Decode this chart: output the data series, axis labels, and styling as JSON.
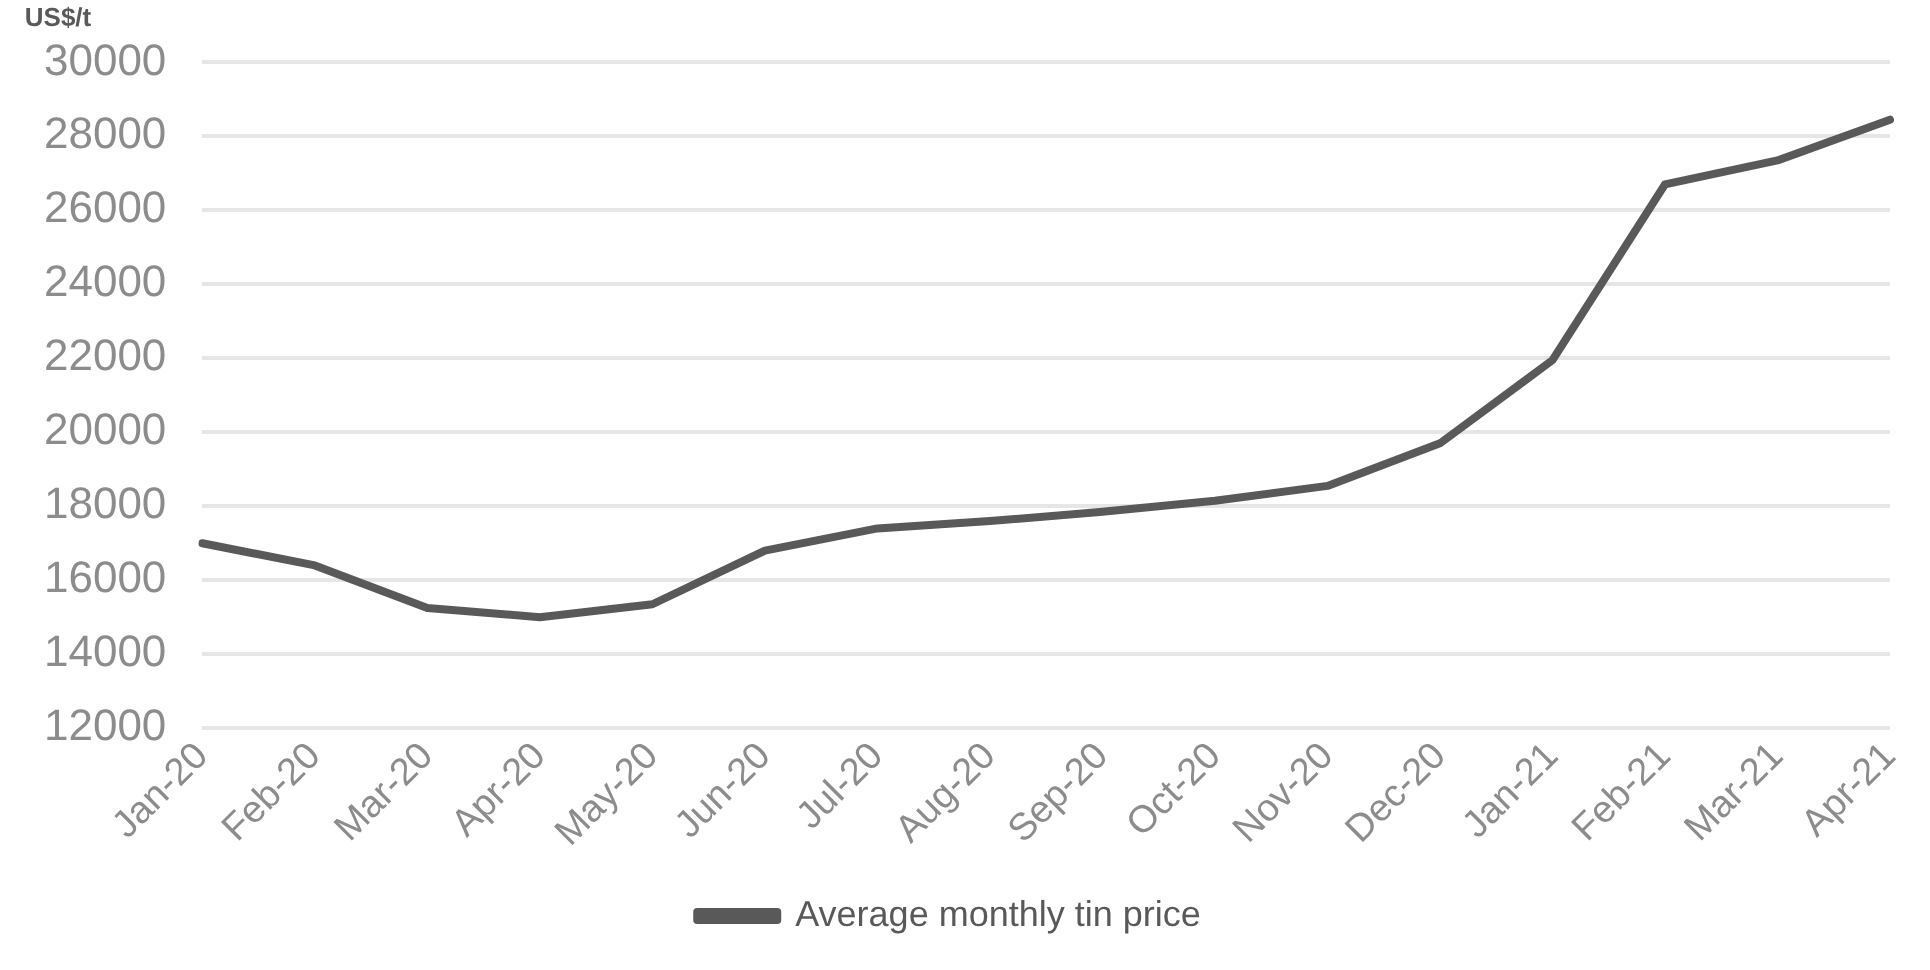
{
  "chart_data": {
    "type": "line",
    "ylabel": "US$/t",
    "categories": [
      "Jan-20",
      "Feb-20",
      "Mar-20",
      "Apr-20",
      "May-20",
      "Jun-20",
      "Jul-20",
      "Aug-20",
      "Sep-20",
      "Oct-20",
      "Nov-20",
      "Dec-20",
      "Jan-21",
      "Feb-21",
      "Mar-21",
      "Apr-21"
    ],
    "series": [
      {
        "name": "Average monthly tin price",
        "color": "#595959",
        "values": [
          17000,
          16400,
          15250,
          15000,
          15350,
          16800,
          17400,
          17600,
          17850,
          18150,
          18550,
          19700,
          21950,
          26700,
          27350,
          28450
        ]
      }
    ],
    "ylim": [
      12000,
      30000
    ],
    "yticks": [
      12000,
      14000,
      16000,
      18000,
      20000,
      22000,
      24000,
      26000,
      28000,
      30000
    ],
    "grid": "y",
    "legend": "bottom",
    "marker": "none",
    "line_style": "solid"
  }
}
